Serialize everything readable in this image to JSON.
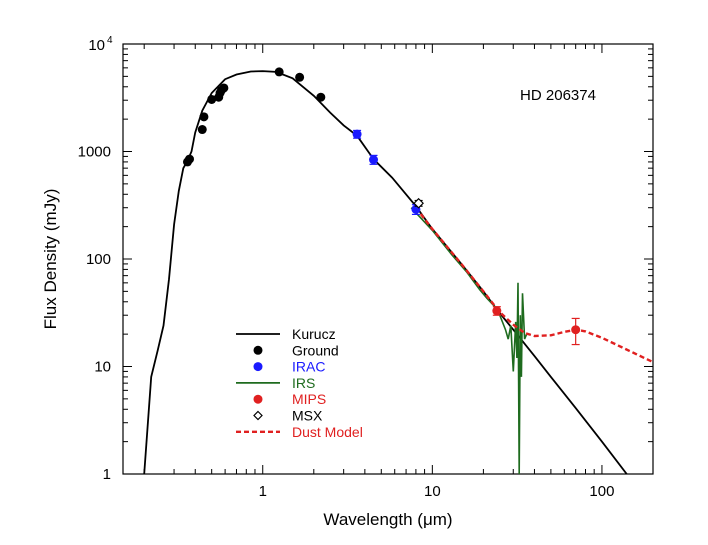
{
  "chart_data": {
    "type": "scatter",
    "xscale": "log",
    "yscale": "log",
    "xlim": [
      0.15,
      200
    ],
    "ylim": [
      1,
      10000
    ],
    "xlabel": "Wavelength (μm)",
    "ylabel": "Flux Density (mJy)",
    "annotation": "HD 206374",
    "xticks": [
      {
        "v": 1,
        "label": "1"
      },
      {
        "v": 10,
        "label": "10"
      },
      {
        "v": 100,
        "label": "100"
      }
    ],
    "yticks": [
      {
        "v": 1,
        "label": "1"
      },
      {
        "v": 10,
        "label": "10"
      },
      {
        "v": 100,
        "label": "100"
      },
      {
        "v": 1000,
        "label": "1000"
      }
    ],
    "ytick_top": {
      "base": "10",
      "exp": "4"
    },
    "colors": {
      "kurucz": "#000000",
      "ground": "#000000",
      "irac": "#1a1aff",
      "irs": "#1e6b1e",
      "mips": "#e02020",
      "msx": "#000000",
      "dust": "#e02020"
    },
    "legend": [
      {
        "name": "Kurucz",
        "style": "line",
        "color": "#000000"
      },
      {
        "name": "Ground",
        "style": "dot",
        "color": "#000000"
      },
      {
        "name": "IRAC",
        "style": "dot",
        "color": "#1a1aff"
      },
      {
        "name": "IRS",
        "style": "line",
        "color": "#1e6b1e"
      },
      {
        "name": "MIPS",
        "style": "dot",
        "color": "#e02020"
      },
      {
        "name": "MSX",
        "style": "diamond",
        "color": "#000000"
      },
      {
        "name": "Dust Model",
        "style": "dashed",
        "color": "#e02020"
      }
    ],
    "series": [
      {
        "name": "Kurucz",
        "type": "line",
        "x": [
          0.2,
          0.22,
          0.24,
          0.26,
          0.28,
          0.3,
          0.32,
          0.34,
          0.36,
          0.38,
          0.4,
          0.44,
          0.5,
          0.6,
          0.7,
          0.85,
          1.0,
          1.2,
          1.5,
          2.0,
          2.5,
          3.0,
          3.6,
          4.5,
          5.8,
          8.0,
          10,
          15,
          20,
          24,
          30,
          40,
          50,
          70,
          100,
          140
        ],
        "y": [
          1.0,
          8,
          14,
          24,
          65,
          210,
          430,
          700,
          820,
          1000,
          1500,
          2400,
          3500,
          4700,
          5200,
          5550,
          5600,
          5500,
          4800,
          3300,
          2300,
          1750,
          1400,
          850,
          570,
          310,
          190,
          88,
          50,
          34,
          22,
          12.5,
          8.0,
          4.1,
          2.0,
          1.0
        ]
      },
      {
        "name": "Ground",
        "type": "scatter",
        "x": [
          0.36,
          0.37,
          0.44,
          0.45,
          0.5,
          0.55,
          0.56,
          0.57,
          0.59,
          1.25,
          1.65,
          2.2
        ],
        "y": [
          800,
          850,
          1600,
          2100,
          3050,
          3200,
          3500,
          3700,
          3900,
          5500,
          4900,
          3200
        ]
      },
      {
        "name": "IRAC",
        "type": "scatter",
        "x": [
          3.6,
          4.5,
          8.0
        ],
        "y": [
          1450,
          840,
          290
        ],
        "yerr": [
          120,
          80,
          30
        ]
      },
      {
        "name": "IRS",
        "type": "line",
        "x": [
          7.5,
          10,
          13,
          16,
          19,
          21,
          23,
          25,
          27,
          28,
          29,
          30,
          31,
          31.5,
          32,
          32.5,
          33,
          33.5,
          34,
          35,
          36
        ],
        "y": [
          300,
          185,
          110,
          75,
          52,
          43,
          37,
          30,
          22,
          18,
          24,
          9,
          26,
          12,
          60,
          1.0,
          30,
          8,
          48,
          18,
          20
        ]
      },
      {
        "name": "MIPS",
        "type": "scatter",
        "x": [
          24,
          70
        ],
        "y": [
          33,
          22
        ],
        "yerr": [
          3,
          6
        ]
      },
      {
        "name": "MSX",
        "type": "scatter",
        "x": [
          8.3
        ],
        "y": [
          330
        ],
        "yerr": [
          20
        ]
      },
      {
        "name": "Dust Model",
        "type": "dashed",
        "x": [
          8,
          10,
          15,
          20,
          25,
          30,
          35,
          40,
          50,
          60,
          70,
          80,
          100,
          130,
          160,
          200
        ],
        "y": [
          300,
          190,
          88,
          50,
          32,
          24.5,
          20.5,
          19.2,
          19.5,
          21,
          22,
          21.2,
          18.5,
          15.2,
          13,
          11
        ]
      }
    ]
  }
}
